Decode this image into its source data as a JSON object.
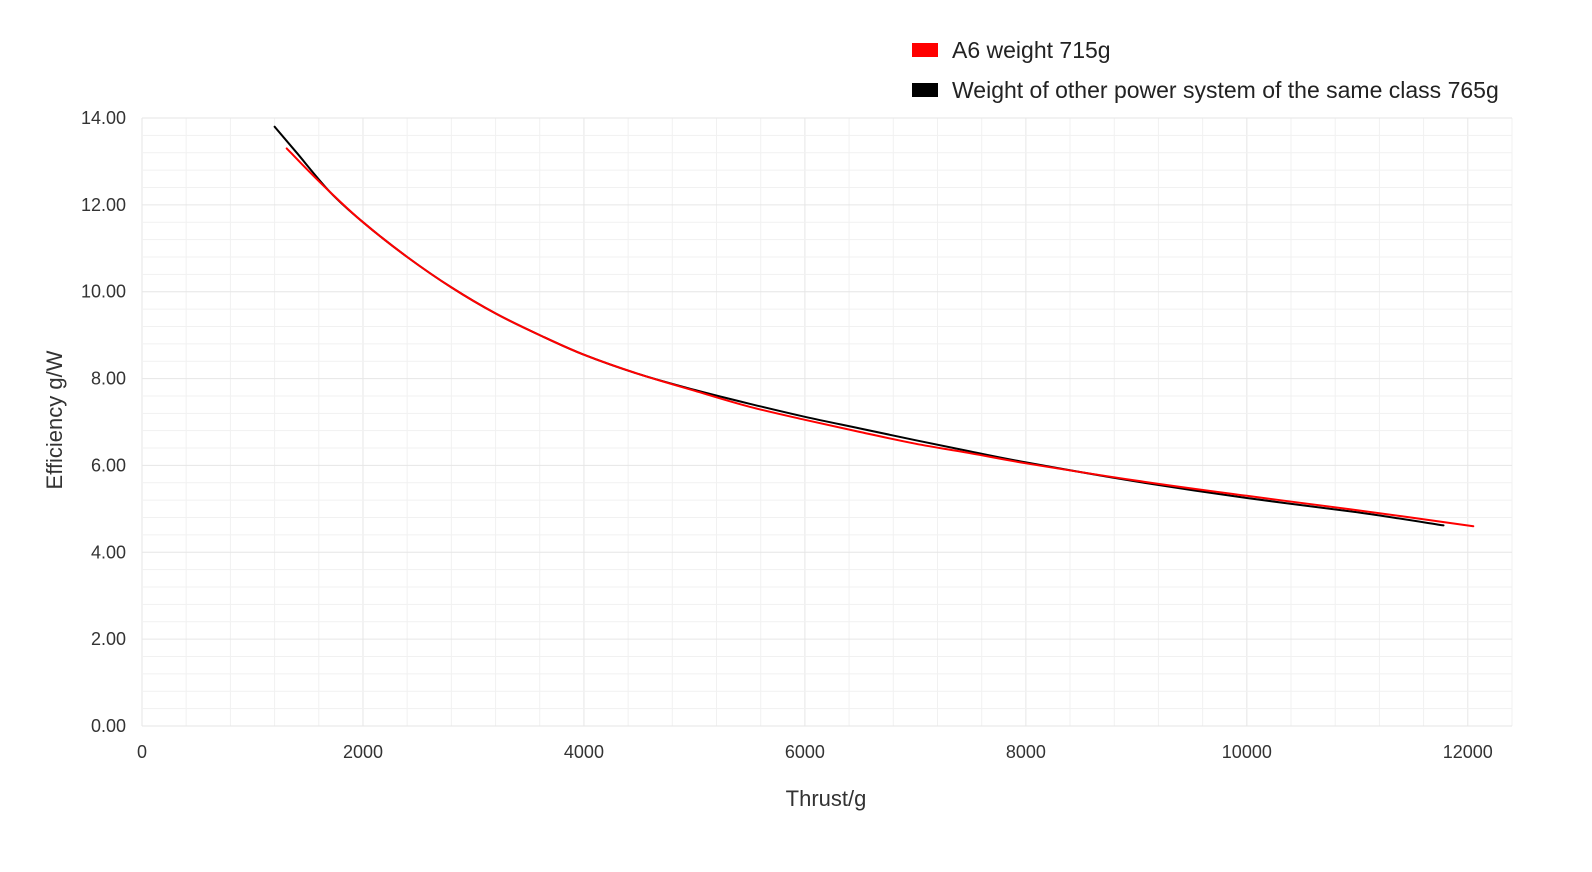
{
  "chart_data": {
    "type": "line",
    "title": "",
    "xlabel": "Thrust/g",
    "ylabel": "Efficiency g/W",
    "xlim": [
      0,
      12400
    ],
    "ylim": [
      0,
      14
    ],
    "x_ticks": [
      0,
      2000,
      4000,
      6000,
      8000,
      10000,
      12000
    ],
    "x_tick_labels": [
      "0",
      "2000",
      "4000",
      "6000",
      "8000",
      "10000",
      "12000"
    ],
    "y_ticks": [
      0,
      2,
      4,
      6,
      8,
      10,
      12,
      14
    ],
    "y_tick_labels": [
      "0.00",
      "2.00",
      "4.00",
      "6.00",
      "8.00",
      "10.00",
      "12.00",
      "14.00"
    ],
    "grid": true,
    "legend_position": "top-right",
    "series": [
      {
        "name": "A6 weight 715g",
        "color": "#ff0000",
        "points": [
          [
            1310,
            13.3
          ],
          [
            1500,
            12.8
          ],
          [
            1700,
            12.3
          ],
          [
            2000,
            11.6
          ],
          [
            2400,
            10.8
          ],
          [
            2800,
            10.1
          ],
          [
            3200,
            9.5
          ],
          [
            3600,
            9.0
          ],
          [
            4000,
            8.55
          ],
          [
            4500,
            8.1
          ],
          [
            5000,
            7.72
          ],
          [
            5500,
            7.35
          ],
          [
            6000,
            7.05
          ],
          [
            6500,
            6.77
          ],
          [
            7000,
            6.5
          ],
          [
            7500,
            6.28
          ],
          [
            8000,
            6.05
          ],
          [
            9000,
            5.65
          ],
          [
            10000,
            5.3
          ],
          [
            11000,
            4.97
          ],
          [
            12050,
            4.6
          ]
        ]
      },
      {
        "name": "Weight of other power system of the same class 765g",
        "color": "#000000",
        "points": [
          [
            1200,
            13.8
          ],
          [
            1400,
            13.2
          ],
          [
            1700,
            12.3
          ],
          [
            2000,
            11.6
          ],
          [
            2400,
            10.8
          ],
          [
            2800,
            10.1
          ],
          [
            3200,
            9.5
          ],
          [
            3600,
            9.0
          ],
          [
            4000,
            8.55
          ],
          [
            4500,
            8.1
          ],
          [
            5000,
            7.74
          ],
          [
            5500,
            7.42
          ],
          [
            6000,
            7.12
          ],
          [
            6500,
            6.85
          ],
          [
            7000,
            6.58
          ],
          [
            7500,
            6.32
          ],
          [
            8000,
            6.07
          ],
          [
            9000,
            5.63
          ],
          [
            10000,
            5.25
          ],
          [
            11000,
            4.92
          ],
          [
            11780,
            4.62
          ]
        ]
      }
    ]
  }
}
